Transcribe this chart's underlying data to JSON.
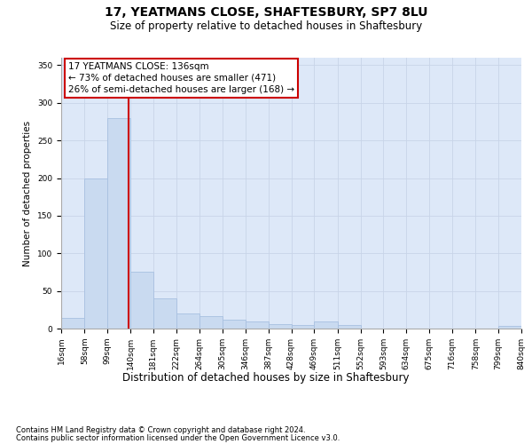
{
  "title1": "17, YEATMANS CLOSE, SHAFTESBURY, SP7 8LU",
  "title2": "Size of property relative to detached houses in Shaftesbury",
  "xlabel": "Distribution of detached houses by size in Shaftesbury",
  "ylabel": "Number of detached properties",
  "bin_edges": [
    16,
    58,
    99,
    140,
    181,
    222,
    264,
    305,
    346,
    387,
    428,
    469,
    511,
    552,
    593,
    634,
    675,
    716,
    758,
    799,
    840
  ],
  "bar_heights": [
    14,
    200,
    280,
    75,
    40,
    20,
    16,
    12,
    10,
    6,
    5,
    10,
    5,
    0,
    0,
    0,
    0,
    0,
    0,
    3
  ],
  "bar_color": "#c9daf0",
  "bar_edge_color": "#a8c0e0",
  "grid_color": "#c8d4e8",
  "background_color": "#dde8f8",
  "vline_x": 136,
  "vline_color": "#cc0000",
  "annotation_text": "17 YEATMANS CLOSE: 136sqm\n← 73% of detached houses are smaller (471)\n26% of semi-detached houses are larger (168) →",
  "annotation_box_color": "white",
  "annotation_box_edge_color": "#cc0000",
  "footnote1": "Contains HM Land Registry data © Crown copyright and database right 2024.",
  "footnote2": "Contains public sector information licensed under the Open Government Licence v3.0.",
  "ylim": [
    0,
    360
  ],
  "yticks": [
    0,
    50,
    100,
    150,
    200,
    250,
    300,
    350
  ],
  "tick_labels": [
    "16sqm",
    "58sqm",
    "99sqm",
    "140sqm",
    "181sqm",
    "222sqm",
    "264sqm",
    "305sqm",
    "346sqm",
    "387sqm",
    "428sqm",
    "469sqm",
    "511sqm",
    "552sqm",
    "593sqm",
    "634sqm",
    "675sqm",
    "716sqm",
    "758sqm",
    "799sqm",
    "840sqm"
  ],
  "title1_fontsize": 10,
  "title2_fontsize": 8.5,
  "xlabel_fontsize": 8.5,
  "ylabel_fontsize": 7.5,
  "tick_fontsize": 6.5,
  "footnote_fontsize": 6.0,
  "annotation_fontsize": 7.5
}
